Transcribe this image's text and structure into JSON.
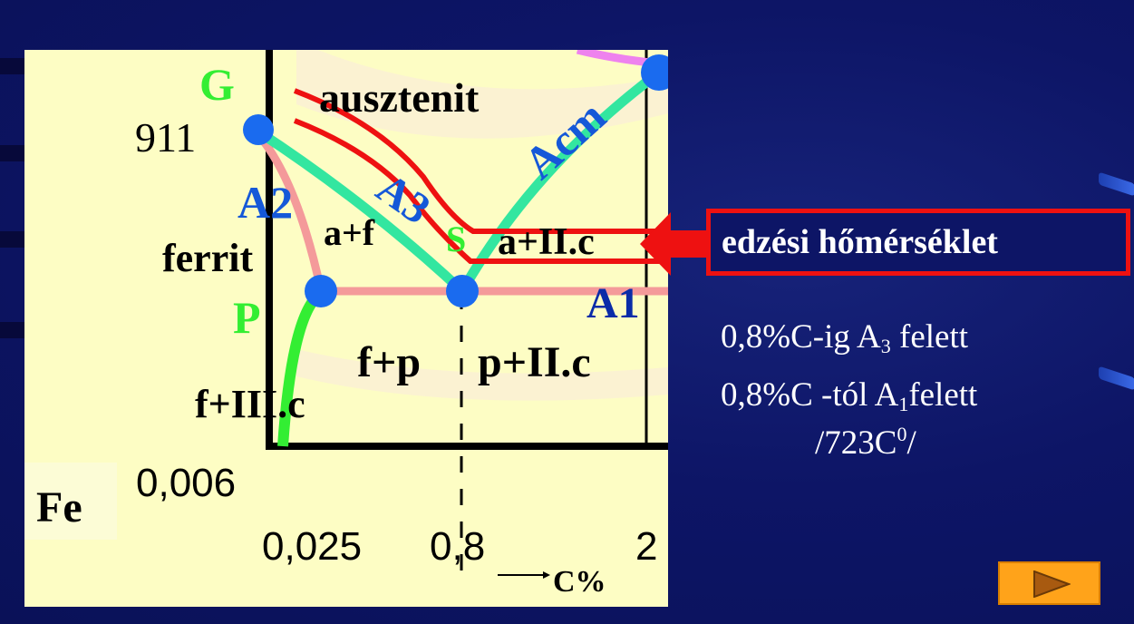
{
  "diagram": {
    "point_labels": {
      "G": "G",
      "P": "P",
      "S": "S"
    },
    "temp_label": "911",
    "phase_labels": {
      "austenite": "ausztenit",
      "ferrite": "ferrit",
      "alpha_gamma": "a+f",
      "gamma_cementite": "a+II.c",
      "ferrite_pearlite": "f+p",
      "pearlite_cementite": "p+II.c",
      "ferrite_tertiary": "f+III.c"
    },
    "line_labels": {
      "A2": "A2",
      "A3": "A3",
      "Acm": "Acm",
      "A1": "A1"
    },
    "axis_labels": {
      "fe": "Fe",
      "c_axis": "C%"
    },
    "tick_labels": [
      "0,006",
      "0,025",
      "0,8",
      "2"
    ],
    "colors": {
      "panel": "#fdfdc4",
      "green_line": "#33e6a0",
      "red_band": "#ee1111",
      "point": "#1a6bef",
      "a1_label": "#0a2ca8"
    }
  },
  "callout": {
    "text": "edzési hőmérséklet"
  },
  "notes": {
    "line1": {
      "before": "0,8%C-ig A",
      "sub": "3",
      "after": " felett"
    },
    "line2": {
      "before": "0,8%C -tól A",
      "sub": "1",
      "after": "felett"
    },
    "line3": {
      "before": "/723C",
      "sup": "0",
      "after": "/"
    }
  },
  "nav": {
    "next_icon": "play-triangle-icon"
  }
}
